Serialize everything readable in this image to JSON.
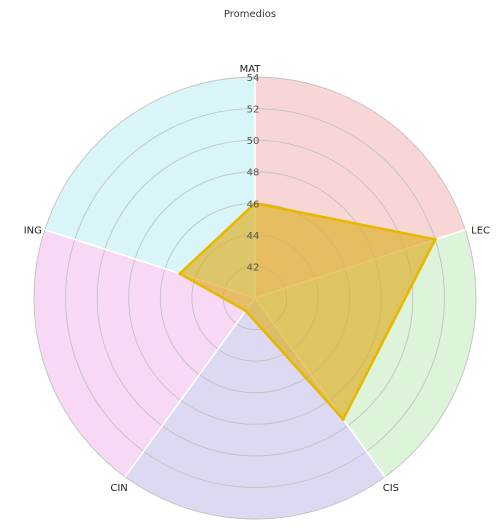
{
  "chart_data": {
    "type": "radar",
    "title": "Promedios",
    "categories": [
      "MAT",
      "LEC",
      "CIS",
      "CIN",
      "ING"
    ],
    "rlim": [
      40,
      54
    ],
    "rticks": [
      42,
      44,
      46,
      48,
      50,
      52,
      54
    ],
    "series": [
      {
        "values": [
          46,
          52,
          49.5,
          41,
          45
        ]
      }
    ],
    "grid": true,
    "sector_colors": [
      "#f8d2d2",
      "#d9f2d6",
      "#d9d5f1",
      "#f6d4f4",
      "#d6f4f6"
    ],
    "series_color": "#e6b800",
    "inner_fill_color": "#f4a460"
  }
}
